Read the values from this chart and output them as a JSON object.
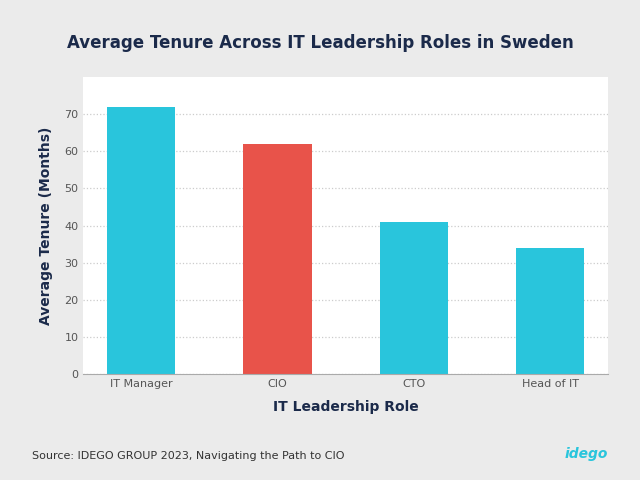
{
  "title": "Average Tenure Across IT Leadership Roles in Sweden",
  "categories": [
    "IT Manager",
    "CIO",
    "CTO",
    "Head of IT"
  ],
  "values": [
    72,
    62,
    41,
    34
  ],
  "bar_colors": [
    "#29C5DC",
    "#E8534A",
    "#29C5DC",
    "#29C5DC"
  ],
  "xlabel": "IT Leadership Role",
  "ylabel": "Average Tenure (Months)",
  "ylim": [
    0,
    80
  ],
  "yticks": [
    0,
    10,
    20,
    30,
    40,
    50,
    60,
    70
  ],
  "background_color": "#EBEBEB",
  "plot_bg_color": "#FFFFFF",
  "title_color": "#1B2A4A",
  "axis_label_color": "#1B2A4A",
  "tick_label_color": "#555555",
  "grid_color": "#CCCCCC",
  "source_text": "Source: IDEGO GROUP 2023, Navigating the Path to CIO",
  "source_color": "#333333",
  "logo_text": "idego",
  "logo_color": "#29C5DC",
  "title_fontsize": 12,
  "axis_label_fontsize": 10,
  "tick_fontsize": 8,
  "source_fontsize": 8,
  "bar_width": 0.5
}
